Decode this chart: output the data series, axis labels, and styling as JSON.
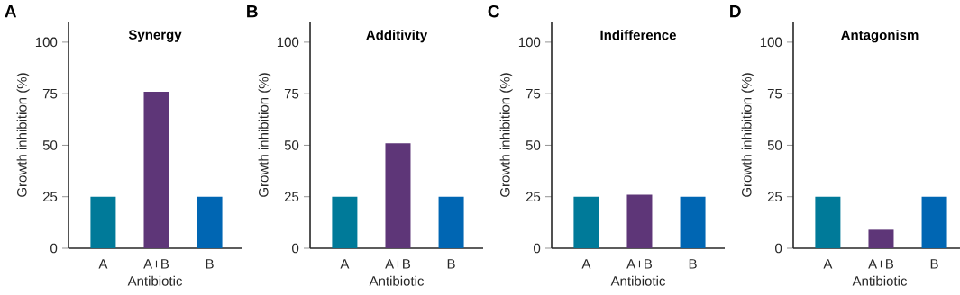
{
  "chart_data": [
    {
      "type": "bar",
      "title": "Synergy",
      "annotations": [
        "A"
      ],
      "xlabel": "Antibiotic",
      "ylabel": "Growth inhibition (%)",
      "categories": [
        "A",
        "A+B",
        "B"
      ],
      "values": [
        25,
        76,
        25
      ],
      "colors": [
        "#007a99",
        "#5e3678",
        "#0066b3"
      ],
      "ylim": [
        0,
        110
      ],
      "yticks": [
        0,
        25,
        50,
        75,
        100
      ]
    },
    {
      "type": "bar",
      "title": "Additivity",
      "annotations": [
        "B"
      ],
      "xlabel": "Antibiotic",
      "ylabel": "Growth inhibition (%)",
      "categories": [
        "A",
        "A+B",
        "B"
      ],
      "values": [
        25,
        51,
        25
      ],
      "colors": [
        "#007a99",
        "#5e3678",
        "#0066b3"
      ],
      "ylim": [
        0,
        110
      ],
      "yticks": [
        0,
        25,
        50,
        75,
        100
      ]
    },
    {
      "type": "bar",
      "title": "Indifference",
      "annotations": [
        "C"
      ],
      "xlabel": "Antibiotic",
      "ylabel": "Growth inhibition (%)",
      "categories": [
        "A",
        "A+B",
        "B"
      ],
      "values": [
        25,
        26,
        25
      ],
      "colors": [
        "#007a99",
        "#5e3678",
        "#0066b3"
      ],
      "ylim": [
        0,
        110
      ],
      "yticks": [
        0,
        25,
        50,
        75,
        100
      ]
    },
    {
      "type": "bar",
      "title": "Antagonism",
      "annotations": [
        "D"
      ],
      "xlabel": "Antibiotic",
      "ylabel": "Growth inhibition (%)",
      "categories": [
        "A",
        "A+B",
        "B"
      ],
      "values": [
        25,
        9,
        25
      ],
      "colors": [
        "#007a99",
        "#5e3678",
        "#0066b3"
      ],
      "ylim": [
        0,
        110
      ],
      "yticks": [
        0,
        25,
        50,
        75,
        100
      ]
    }
  ]
}
